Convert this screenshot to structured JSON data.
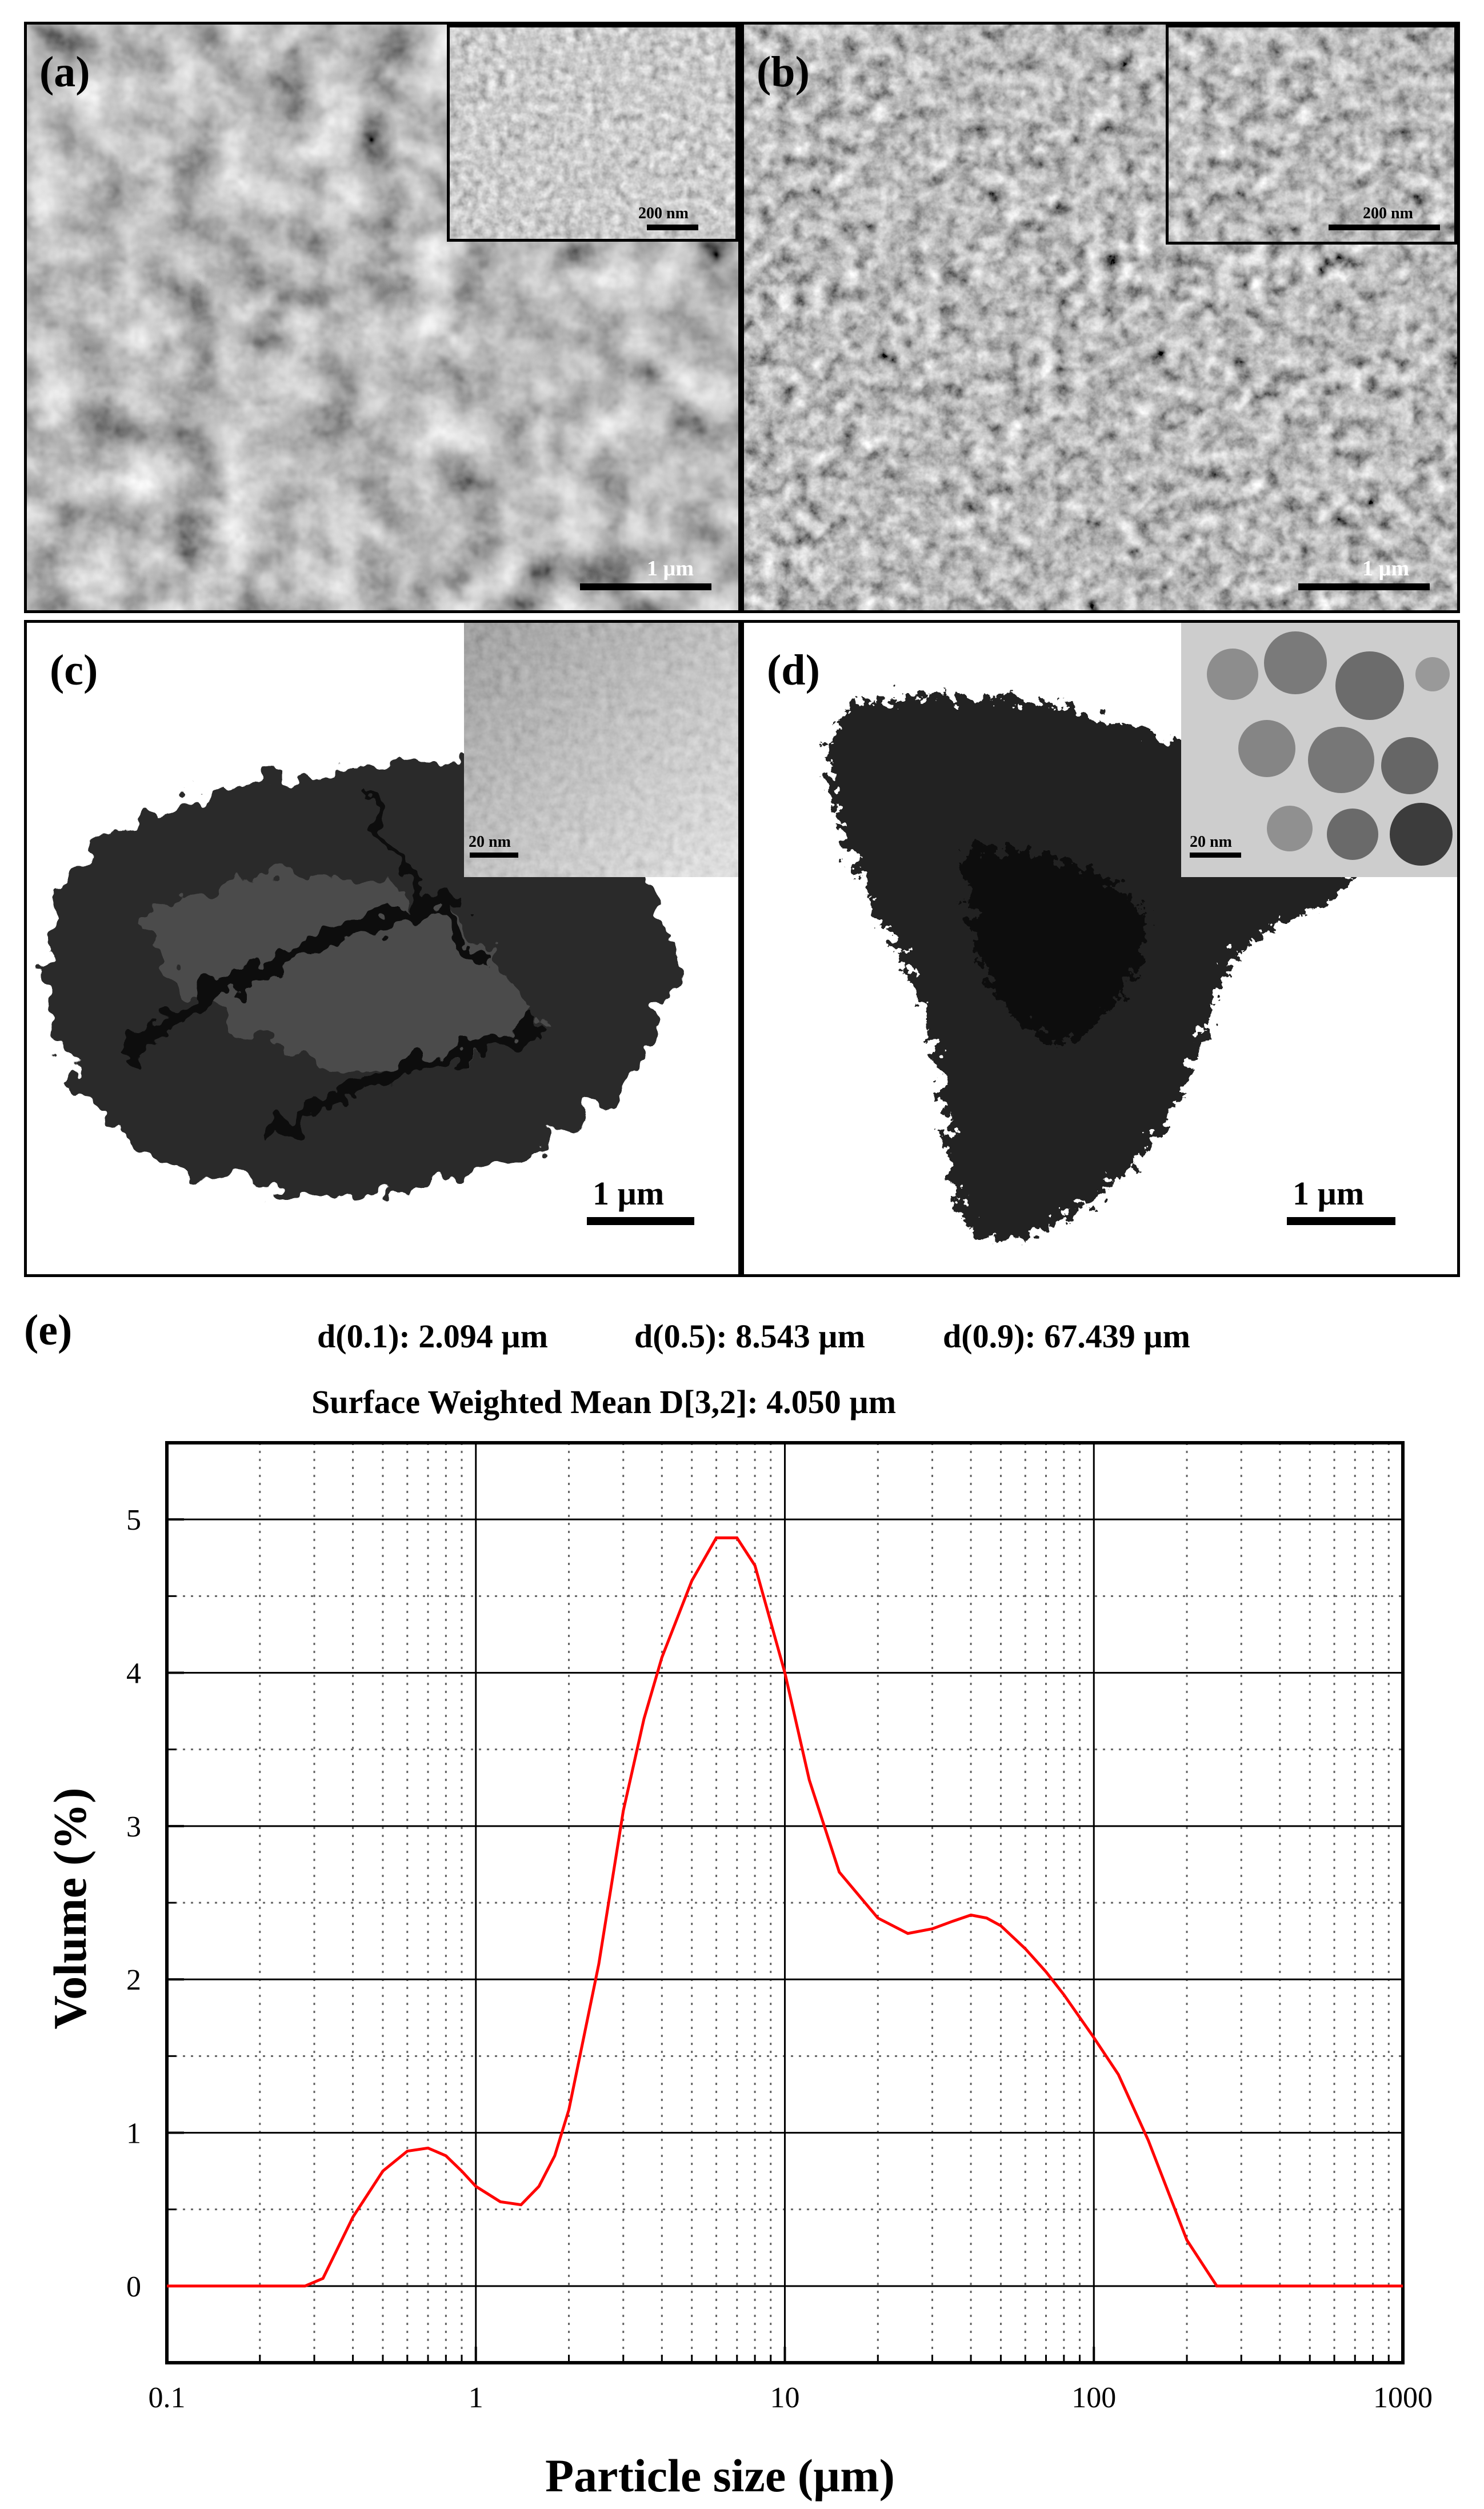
{
  "panels": {
    "a": {
      "label": "(a)",
      "scale": "1 µm",
      "inset_scale": "200 nm"
    },
    "b": {
      "label": "(b)",
      "scale": "1 µm",
      "inset_scale": "200 nm"
    },
    "c": {
      "label": "(c)",
      "scale": "1 µm",
      "inset_scale": "20 nm"
    },
    "d": {
      "label": "(d)",
      "scale": "1 µm",
      "inset_scale": "20 nm"
    }
  },
  "figure_e": {
    "label": "(e)",
    "stats": {
      "d01": "d(0.1): 2.094 µm",
      "d05": "d(0.5): 8.543  µm",
      "d09": "d(0.9): 67.439  µm",
      "d32": "Surface Weighted Mean D[3,2]: 4.050 µm"
    }
  },
  "colors": {
    "curve": "#ff0000",
    "grid_major": "#000000",
    "grid_minor": "#666666"
  },
  "chart_data": {
    "type": "line",
    "xlabel": "Particle size (µm)",
    "ylabel": "Volume (%)",
    "xscale": "log",
    "xlim": [
      0.1,
      1000
    ],
    "ylim": [
      -0.5,
      5.5
    ],
    "xticks": [
      {
        "v": 0.1,
        "label": "0.1"
      },
      {
        "v": 1,
        "label": "1"
      },
      {
        "v": 10,
        "label": "10"
      },
      {
        "v": 100,
        "label": "100"
      },
      {
        "v": 1000,
        "label": "1000"
      }
    ],
    "yticks": [
      0,
      1,
      2,
      3,
      4,
      5
    ],
    "grid": "on",
    "series": [
      {
        "x": [
          0.1,
          0.28,
          0.32,
          0.4,
          0.5,
          0.6,
          0.7,
          0.8,
          0.9,
          1.0,
          1.2,
          1.4,
          1.6,
          1.8,
          2.0,
          2.5,
          3.0,
          3.5,
          4.0,
          5.0,
          6.0,
          7.0,
          8.0,
          10,
          12,
          15,
          20,
          25,
          30,
          35,
          40,
          45,
          50,
          60,
          70,
          80,
          100,
          120,
          150,
          200,
          250,
          300,
          500,
          1000
        ],
        "y": [
          0,
          0,
          0.05,
          0.45,
          0.75,
          0.88,
          0.9,
          0.85,
          0.75,
          0.65,
          0.55,
          0.53,
          0.65,
          0.85,
          1.15,
          2.1,
          3.1,
          3.7,
          4.1,
          4.6,
          4.88,
          4.88,
          4.7,
          4.0,
          3.3,
          2.7,
          2.4,
          2.3,
          2.33,
          2.38,
          2.42,
          2.4,
          2.35,
          2.2,
          2.05,
          1.9,
          1.62,
          1.38,
          0.95,
          0.3,
          0.0,
          0,
          0,
          0
        ]
      }
    ]
  }
}
